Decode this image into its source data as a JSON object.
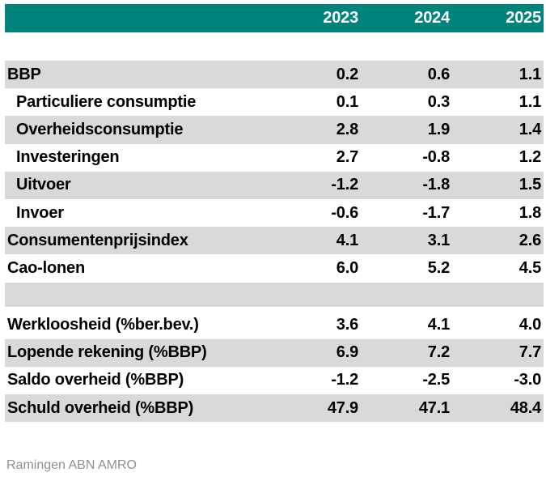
{
  "chart_data": {
    "type": "table",
    "years": [
      "2023",
      "2024",
      "2025"
    ],
    "rows": [
      {
        "label": "BBP",
        "indent": false,
        "shaded": true,
        "values": [
          "0.2",
          "0.6",
          "1.1"
        ]
      },
      {
        "label": "Particuliere consumptie",
        "indent": true,
        "shaded": false,
        "values": [
          "0.1",
          "0.3",
          "1.1"
        ]
      },
      {
        "label": "Overheidsconsumptie",
        "indent": true,
        "shaded": true,
        "values": [
          "2.8",
          "1.9",
          "1.4"
        ]
      },
      {
        "label": "Investeringen",
        "indent": true,
        "shaded": false,
        "values": [
          "2.7",
          "-0.8",
          "1.2"
        ]
      },
      {
        "label": "Uitvoer",
        "indent": true,
        "shaded": true,
        "values": [
          "-1.2",
          "-1.8",
          "1.5"
        ]
      },
      {
        "label": "Invoer",
        "indent": true,
        "shaded": false,
        "values": [
          "-0.6",
          "-1.7",
          "1.8"
        ]
      },
      {
        "label": "Consumentenprijsindex",
        "indent": false,
        "shaded": true,
        "values": [
          "4.1",
          "3.1",
          "2.6"
        ]
      },
      {
        "label": "Cao-lonen",
        "indent": false,
        "shaded": false,
        "values": [
          "6.0",
          "5.2",
          "4.5"
        ]
      },
      {
        "spacer": true,
        "shaded": true
      },
      {
        "label": "Werkloosheid (%ber.bev.)",
        "indent": false,
        "shaded": false,
        "values": [
          "3.6",
          "4.1",
          "4.0"
        ]
      },
      {
        "label": "Lopende rekening (%BBP)",
        "indent": false,
        "shaded": true,
        "values": [
          "6.9",
          "7.2",
          "7.7"
        ]
      },
      {
        "label": "Saldo overheid (%BBP)",
        "indent": false,
        "shaded": false,
        "values": [
          "-1.2",
          "-2.5",
          "-3.0"
        ]
      },
      {
        "label": "Schuld overheid (%BBP)",
        "indent": false,
        "shaded": true,
        "values": [
          "47.9",
          "47.1",
          "48.4"
        ]
      }
    ],
    "source": "Ramingen ABN AMRO"
  },
  "colors": {
    "accent_teal": "#00827D",
    "row_shade": "#D9D9D9",
    "source_text": "#8E9093"
  }
}
